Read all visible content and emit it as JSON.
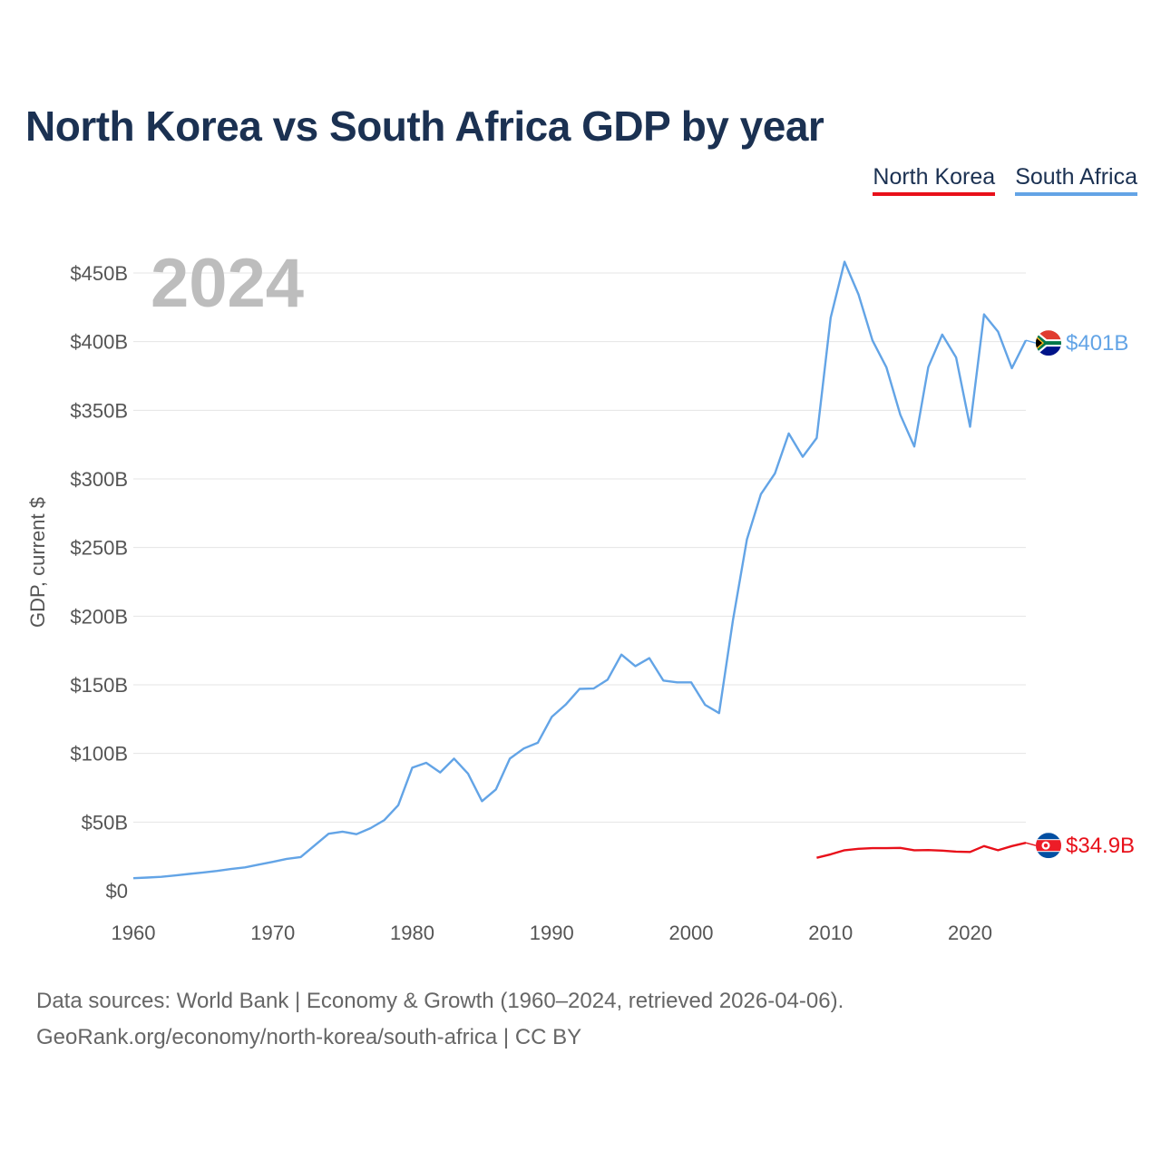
{
  "title": "North Korea vs South Africa GDP by year",
  "legend": [
    {
      "label": "North Korea",
      "color": "#e8101a"
    },
    {
      "label": "South Africa",
      "color": "#63a4e6"
    }
  ],
  "year_watermark": "2024",
  "sources": {
    "line1": "Data sources: World Bank | Economy & Growth (1960–2024, retrieved 2026-04-06).",
    "line2": "GeoRank.org/economy/north-korea/south-africa | CC BY"
  },
  "chart_data": {
    "type": "line",
    "title": "North Korea vs South Africa GDP by year",
    "xlabel": "",
    "ylabel": "GDP, current $",
    "xlim": [
      1960,
      2024
    ],
    "ylim": [
      0,
      450
    ],
    "y_unit": "billion USD",
    "x_ticks": [
      1960,
      1970,
      1980,
      1990,
      2000,
      2010,
      2020
    ],
    "y_ticks": [
      0,
      50,
      100,
      150,
      200,
      250,
      300,
      350,
      400,
      450
    ],
    "y_tick_labels": [
      "$0",
      "$50B",
      "$100B",
      "$150B",
      "$200B",
      "$250B",
      "$300B",
      "$350B",
      "$400B",
      "$450B"
    ],
    "grid": true,
    "legend_position": "top-right",
    "series": [
      {
        "name": "North Korea",
        "color": "#e8101a",
        "end_label": "$34.9B",
        "x": [
          2009,
          2010,
          2011,
          2012,
          2013,
          2014,
          2015,
          2016,
          2017,
          2018,
          2019,
          2020,
          2021,
          2022,
          2023,
          2024
        ],
        "values": [
          24,
          26.5,
          29.5,
          30.5,
          31,
          31,
          31.2,
          29.5,
          29.6,
          29.2,
          28.5,
          28.2,
          32.5,
          29.5,
          32.5,
          34.9
        ]
      },
      {
        "name": "South Africa",
        "color": "#63a4e6",
        "end_label": "$401B",
        "x": [
          1960,
          1961,
          1962,
          1963,
          1964,
          1965,
          1966,
          1967,
          1968,
          1969,
          1970,
          1971,
          1972,
          1973,
          1974,
          1975,
          1976,
          1977,
          1978,
          1979,
          1980,
          1981,
          1982,
          1983,
          1984,
          1985,
          1986,
          1987,
          1988,
          1989,
          1990,
          1991,
          1992,
          1993,
          1994,
          1995,
          1996,
          1997,
          1998,
          1999,
          2000,
          2001,
          2002,
          2003,
          2004,
          2005,
          2006,
          2007,
          2008,
          2009,
          2010,
          2011,
          2012,
          2013,
          2014,
          2015,
          2016,
          2017,
          2018,
          2019,
          2020,
          2021,
          2022,
          2023,
          2024
        ],
        "values": [
          9.1,
          9.6,
          10.1,
          11.1,
          12.2,
          13.3,
          14.4,
          15.8,
          17,
          19,
          21,
          23.2,
          24.5,
          33,
          41.5,
          43,
          41.2,
          45.5,
          51.5,
          62.3,
          89.6,
          93.2,
          86.2,
          96.2,
          85.3,
          65.2,
          73.8,
          96.2,
          103.6,
          107.8,
          126.6,
          135.5,
          147,
          147.3,
          153.7,
          172,
          163.6,
          169.4,
          153.1,
          151.8,
          151.8,
          135.4,
          129.4,
          197.2,
          256,
          288.9,
          303.9,
          333.1,
          316.1,
          329.8,
          417.4,
          458.2,
          434.4,
          400.9,
          381.2,
          346.7,
          323.6,
          381.4,
          405.1,
          388.5,
          338,
          419.9,
          407.3,
          380.7,
          401
        ]
      }
    ]
  }
}
